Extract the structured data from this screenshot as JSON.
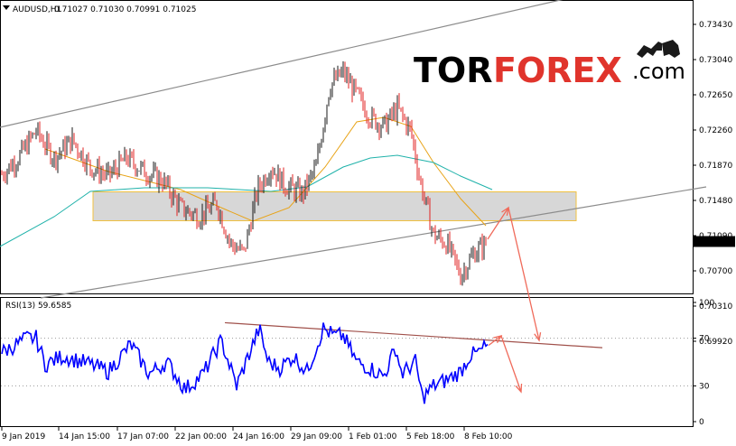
{
  "header": {
    "symbol": "AUDUSD,H1",
    "ohlc": "0.71027 0.71030 0.70991 0.71025",
    "rsi_label": "RSI(13) 59.6585"
  },
  "brand": {
    "part1": "TOR",
    "part2": "FOREX",
    "part3": ".com"
  },
  "colors": {
    "up": "#1a1a1a",
    "down": "#e02020",
    "ma_fast": "#e8a317",
    "ma_slow": "#20b2aa",
    "channel": "#8c8c8c",
    "arrow": "#f06a5a",
    "rsi": "#0000ff",
    "rsi_trend": "#a0504a",
    "zone_fill": "#d3d3d3",
    "zone_border": "#f0c040",
    "brand_red": "#e0342c"
  },
  "chart_data": [
    {
      "type": "candlestick",
      "symbol": "AUDUSD",
      "timeframe": "H1",
      "price_axis": {
        "ticks": [
          "0.73430",
          "0.73040",
          "0.72650",
          "0.72260",
          "0.71870",
          "0.71480",
          "0.71090",
          "0.70700",
          "0.70310",
          "0.69920"
        ],
        "current": "0.71025"
      },
      "time_axis": {
        "ticks": [
          "9 Jan 2019",
          "14 Jan 15:00",
          "17 Jan 07:00",
          "22 Jan 00:00",
          "24 Jan 16:00",
          "29 Jan 09:00",
          "1 Feb 01:00",
          "5 Feb 18:00",
          "8 Feb 10:00"
        ]
      },
      "close_path": [
        [
          0,
          0.7175
        ],
        [
          20,
          0.7195
        ],
        [
          40,
          0.7225
        ],
        [
          60,
          0.7195
        ],
        [
          80,
          0.7215
        ],
        [
          100,
          0.7185
        ],
        [
          120,
          0.7175
        ],
        [
          140,
          0.7195
        ],
        [
          160,
          0.718
        ],
        [
          180,
          0.717
        ],
        [
          200,
          0.714
        ],
        [
          220,
          0.713
        ],
        [
          240,
          0.7145
        ],
        [
          255,
          0.71
        ],
        [
          270,
          0.709
        ],
        [
          285,
          0.716
        ],
        [
          300,
          0.7185
        ],
        [
          315,
          0.7165
        ],
        [
          335,
          0.7155
        ],
        [
          350,
          0.7185
        ],
        [
          365,
          0.7275
        ],
        [
          380,
          0.729
        ],
        [
          395,
          0.7265
        ],
        [
          410,
          0.724
        ],
        [
          425,
          0.723
        ],
        [
          440,
          0.725
        ],
        [
          455,
          0.7225
        ],
        [
          465,
          0.717
        ],
        [
          480,
          0.711
        ],
        [
          495,
          0.71
        ],
        [
          510,
          0.7065
        ],
        [
          525,
          0.709
        ],
        [
          540,
          0.7102
        ]
      ],
      "moving_averages": [
        {
          "name": "",
          "color_key": "ma_fast",
          "points": [
            [
              50,
              0.7205
            ],
            [
              120,
              0.718
            ],
            [
              200,
              0.716
            ],
            [
              245,
              0.714
            ],
            [
              280,
              0.7125
            ],
            [
              320,
              0.714
            ],
            [
              360,
              0.7185
            ],
            [
              395,
              0.7235
            ],
            [
              425,
              0.724
            ],
            [
              455,
              0.723
            ],
            [
              480,
              0.719
            ],
            [
              510,
              0.715
            ],
            [
              538,
              0.712
            ]
          ]
        },
        {
          "name": "",
          "color_key": "ma_slow",
          "points": [
            [
              0,
              0.7097
            ],
            [
              60,
              0.713
            ],
            [
              100,
              0.7158
            ],
            [
              160,
              0.7162
            ],
            [
              230,
              0.7162
            ],
            [
              300,
              0.7158
            ],
            [
              340,
              0.7163
            ],
            [
              380,
              0.7185
            ],
            [
              410,
              0.7195
            ],
            [
              440,
              0.7198
            ],
            [
              480,
              0.719
            ],
            [
              510,
              0.7175
            ],
            [
              545,
              0.716
            ]
          ]
        }
      ],
      "annotations": {
        "resistance_zone": {
          "x_from": 103,
          "x_to": 638,
          "price_high": 0.71575,
          "price_low": 0.71255
        },
        "upper_channel": {
          "from": [
            0,
            0.7229
          ],
          "to": [
            647,
            0.7376
          ]
        },
        "lower_channel": {
          "from": [
            45,
            0.704
          ],
          "to": [
            782,
            0.7163
          ]
        },
        "forecast": [
          [
            540,
            0.7105
          ],
          [
            563,
            0.714
          ],
          [
            597,
            0.6993
          ]
        ]
      }
    },
    {
      "type": "line",
      "name": "RSI(13)",
      "value": 59.6585,
      "ylim": [
        0,
        100
      ],
      "y_ticks": [
        "100",
        "70",
        "30",
        "0"
      ],
      "points": [
        [
          0,
          57
        ],
        [
          30,
          70
        ],
        [
          40,
          70
        ],
        [
          50,
          48
        ],
        [
          70,
          55
        ],
        [
          100,
          48
        ],
        [
          120,
          42
        ],
        [
          145,
          65
        ],
        [
          165,
          40
        ],
        [
          185,
          50
        ],
        [
          205,
          27
        ],
        [
          225,
          40
        ],
        [
          245,
          68
        ],
        [
          262,
          30
        ],
        [
          275,
          55
        ],
        [
          287,
          78
        ],
        [
          297,
          50
        ],
        [
          310,
          45
        ],
        [
          325,
          55
        ],
        [
          340,
          42
        ],
        [
          358,
          78
        ],
        [
          370,
          72
        ],
        [
          380,
          72
        ],
        [
          395,
          50
        ],
        [
          410,
          45
        ],
        [
          425,
          38
        ],
        [
          438,
          62
        ],
        [
          445,
          40
        ],
        [
          460,
          50
        ],
        [
          468,
          20
        ],
        [
          480,
          30
        ],
        [
          495,
          35
        ],
        [
          510,
          42
        ],
        [
          520,
          55
        ],
        [
          530,
          58
        ],
        [
          540,
          64
        ]
      ],
      "trend_line": {
        "from": [
          249,
          83
        ],
        "to": [
          667,
          62
        ]
      },
      "forecast": [
        [
          541,
          64
        ],
        [
          555,
          72
        ],
        [
          577,
          25
        ]
      ]
    }
  ]
}
